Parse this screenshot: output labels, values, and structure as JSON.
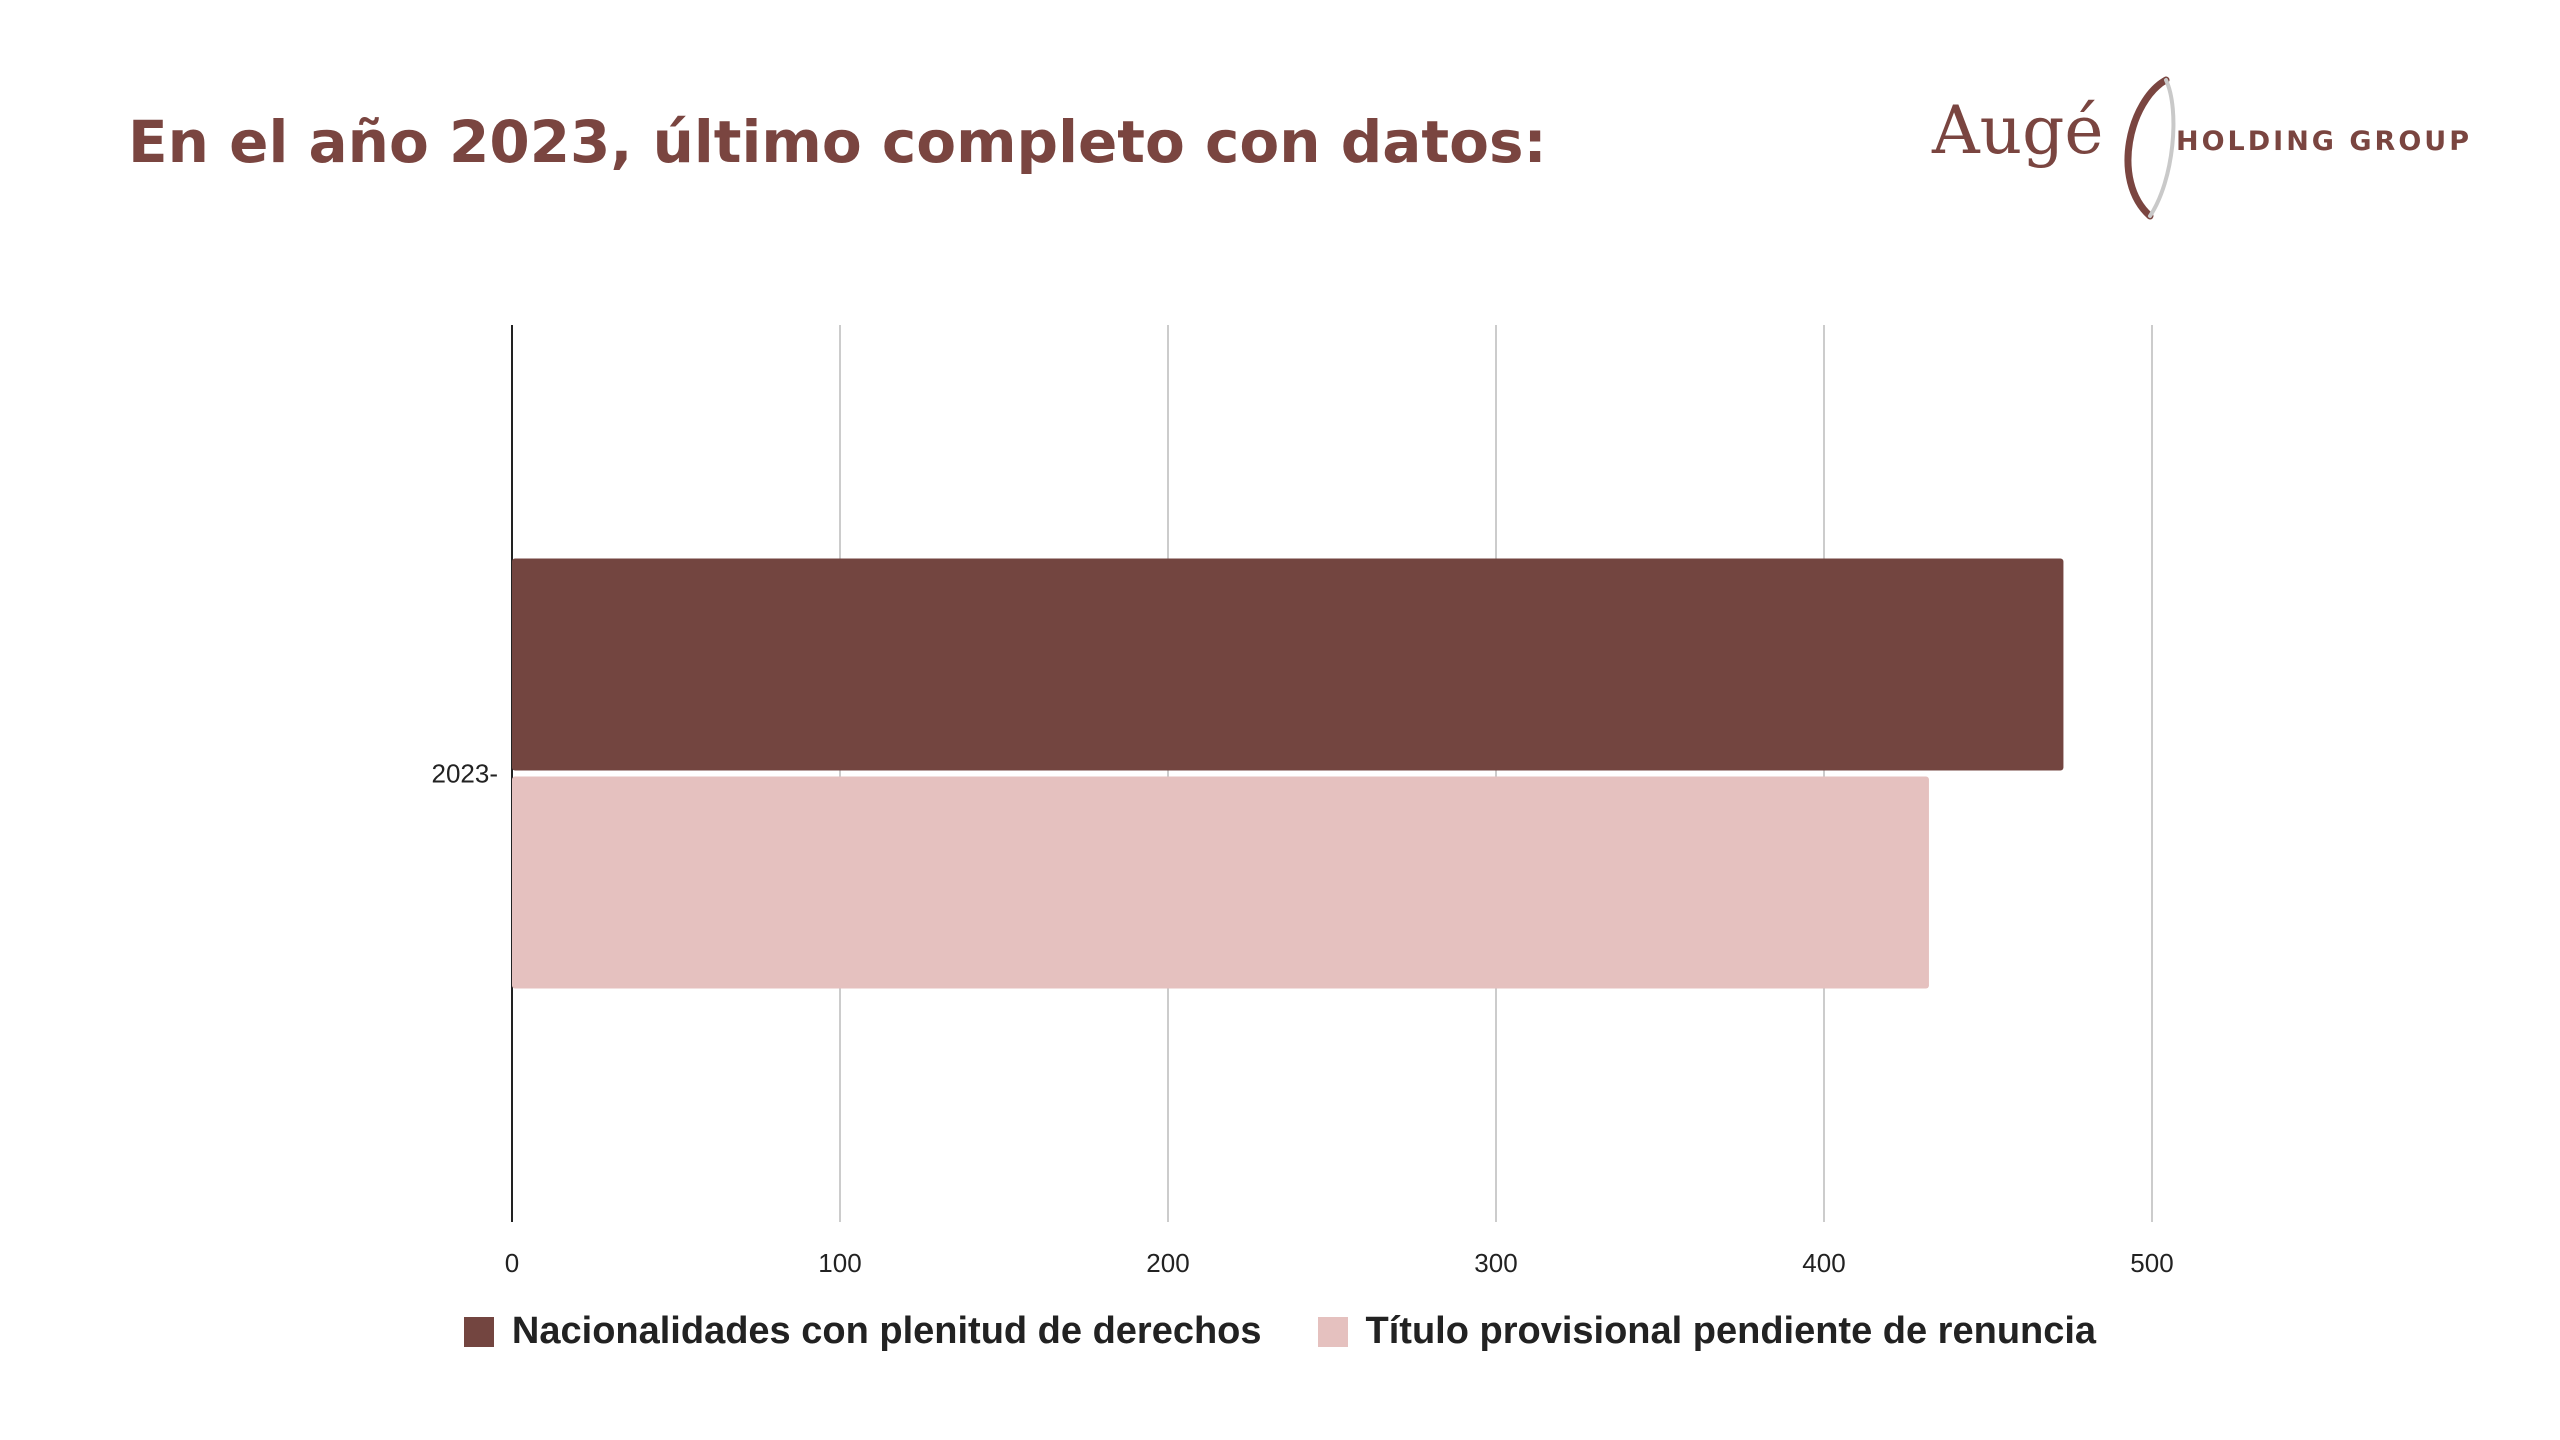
{
  "header": {
    "title": "En el año 2023, último completo con datos:"
  },
  "logo": {
    "wordmark": "Augé",
    "subtitle": "HOLDING GROUP"
  },
  "colors": {
    "brand": "#7a4540",
    "series_dark": "#734540",
    "series_light": "#e5c1bf",
    "grid": "#cccccc",
    "axis": "#222222"
  },
  "chart_data": {
    "type": "bar",
    "orientation": "horizontal",
    "categories": [
      "2023"
    ],
    "category_labels": [
      "2023-"
    ],
    "series": [
      {
        "name": "Nacionalidades con plenitud de derechos",
        "values": [
          473
        ]
      },
      {
        "name": "Título provisional pendiente de renuncia",
        "values": [
          432
        ]
      }
    ],
    "xlim": [
      0,
      500
    ],
    "xticks": [
      0,
      100,
      200,
      300,
      400,
      500
    ],
    "xtick_labels": [
      "0",
      "100",
      "200",
      "300",
      "400",
      "500"
    ],
    "xlabel": "",
    "ylabel": "",
    "grid": true,
    "legend": "bottom"
  }
}
